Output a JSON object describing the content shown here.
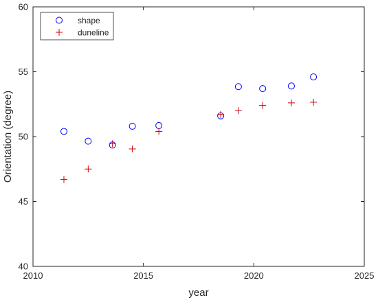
{
  "chart_data": {
    "type": "scatter",
    "xlabel": "year",
    "ylabel": "Orientation (degree)",
    "xlim": [
      2010,
      2025
    ],
    "ylim": [
      40,
      60
    ],
    "xticks": [
      2010,
      2015,
      2020,
      2025
    ],
    "yticks": [
      40,
      45,
      50,
      55,
      60
    ],
    "grid": false,
    "legend_position": "top-left",
    "series": [
      {
        "name": "shape",
        "marker": "circle",
        "color": "#0000ff",
        "points": [
          [
            2011.4,
            50.4
          ],
          [
            2012.5,
            49.65
          ],
          [
            2013.6,
            49.35
          ],
          [
            2014.5,
            50.8
          ],
          [
            2015.7,
            50.85
          ],
          [
            2018.5,
            51.6
          ],
          [
            2019.3,
            53.85
          ],
          [
            2020.4,
            53.7
          ],
          [
            2021.7,
            53.9
          ],
          [
            2022.7,
            54.6
          ]
        ]
      },
      {
        "name": "duneline",
        "marker": "plus",
        "color": "#cc0000",
        "points": [
          [
            2011.4,
            46.7
          ],
          [
            2012.5,
            47.5
          ],
          [
            2013.6,
            49.45
          ],
          [
            2014.5,
            49.05
          ],
          [
            2015.7,
            50.4
          ],
          [
            2018.5,
            51.7
          ],
          [
            2019.3,
            52.0
          ],
          [
            2020.4,
            52.4
          ],
          [
            2021.7,
            52.6
          ],
          [
            2022.7,
            52.65
          ]
        ]
      }
    ]
  }
}
